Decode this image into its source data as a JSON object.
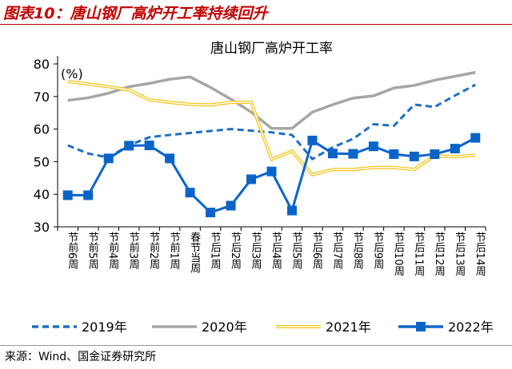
{
  "header": {
    "figure_title": "图表10：唐山钢厂高炉开工率持续回升"
  },
  "footer": {
    "source": "来源：Wind、国金证券研究所"
  },
  "chart_data": {
    "type": "line",
    "title": "唐山钢厂高炉开工率",
    "ylabel": "(%)",
    "ylim": [
      30,
      80
    ],
    "yticks": [
      30,
      40,
      50,
      60,
      70,
      80
    ],
    "grid": false,
    "legend_position": "bottom",
    "categories": [
      "节前6周",
      "节前5周",
      "节前4周",
      "节前3周",
      "节前2周",
      "节前1周",
      "春节当周",
      "节后1周",
      "节后2周",
      "节后3周",
      "节后4周",
      "节后5周",
      "节后6周",
      "节后7周",
      "节后8周",
      "节后9周",
      "节后10周",
      "节后11周",
      "节后12周",
      "节后13周",
      "节后14周"
    ],
    "series": [
      {
        "name": "2019年",
        "color": "#1f6fbf",
        "style": "dashed",
        "values": [
          55,
          52.5,
          51.3,
          55,
          57.5,
          58.2,
          58.8,
          59.4,
          60,
          59.5,
          59,
          58.2,
          50.8,
          54.4,
          57,
          61.5,
          61,
          67.5,
          66.8,
          70.3,
          73.6
        ]
      },
      {
        "name": "2020年",
        "color": "#a6a6a6",
        "style": "solid",
        "values": [
          68.8,
          69.6,
          71,
          73,
          74,
          75.3,
          76,
          72.8,
          69.2,
          65.2,
          60.2,
          60.2,
          65.2,
          67.5,
          69.5,
          70.2,
          72.6,
          73.4,
          75,
          76.2,
          77.4
        ]
      },
      {
        "name": "2021年",
        "color": "#f5c518",
        "style": "double",
        "values": [
          74.6,
          73.8,
          73,
          72,
          69,
          68.2,
          67.6,
          67.4,
          68.2,
          68.2,
          50.7,
          53.2,
          46,
          47.6,
          47.6,
          48.2,
          48.2,
          47.6,
          51.8,
          51.5,
          52
        ]
      },
      {
        "name": "2022年",
        "color": "#0a64c8",
        "style": "solid-marker",
        "values": [
          39.7,
          39.7,
          51,
          54.9,
          55,
          51,
          40.5,
          34.4,
          36.5,
          44.6,
          47,
          35,
          56.5,
          52.5,
          52.4,
          54.7,
          52.3,
          51.6,
          52.3,
          54,
          57.3
        ]
      }
    ]
  }
}
